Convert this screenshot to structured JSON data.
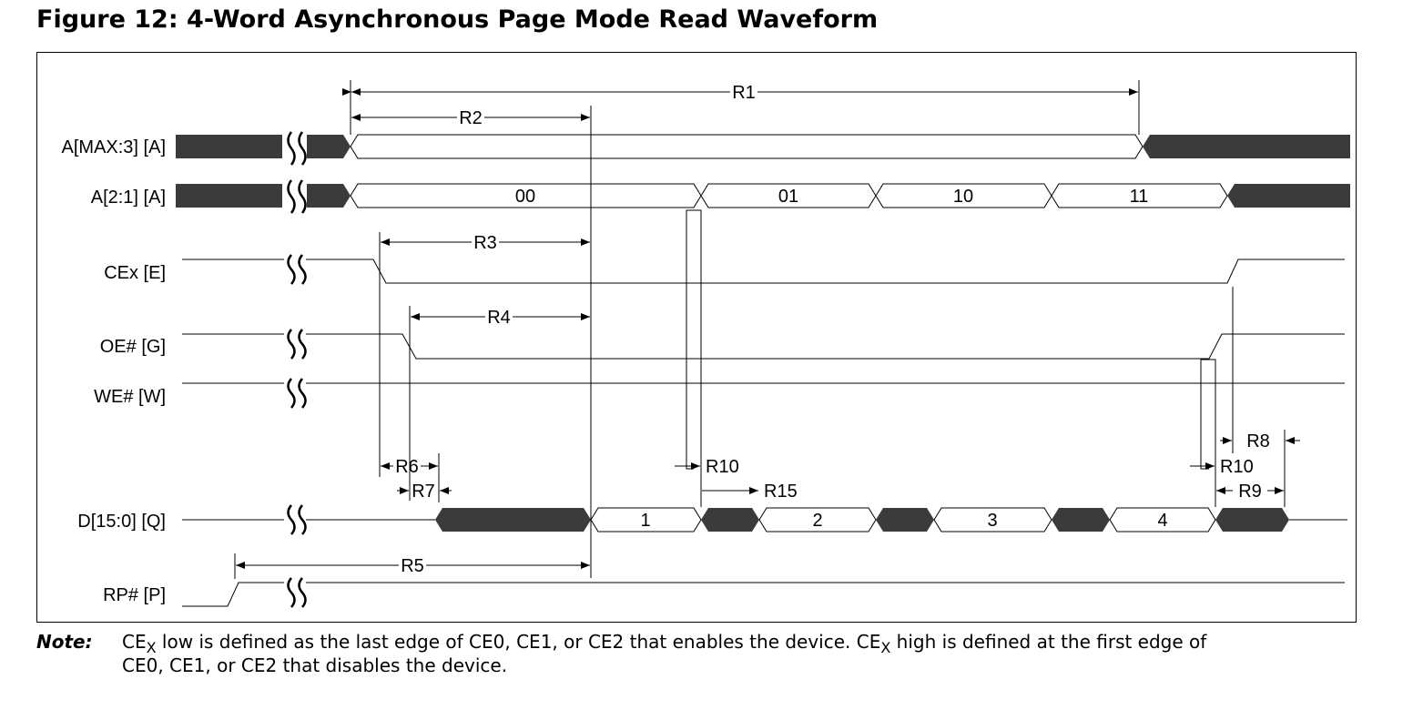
{
  "title": "Figure 12: 4-Word Asynchronous Page Mode Read Waveform",
  "signals": [
    {
      "name": "A[MAX:3] [A]"
    },
    {
      "name": "A[2:1] [A]",
      "values": [
        "00",
        "01",
        "10",
        "11"
      ]
    },
    {
      "name": "CEx [E]"
    },
    {
      "name": "OE# [G]"
    },
    {
      "name": "WE# [W]"
    },
    {
      "name": "D[15:0] [Q]",
      "values": [
        "1",
        "2",
        "3",
        "4"
      ]
    },
    {
      "name": "RP# [P]"
    }
  ],
  "timing_labels": [
    "R1",
    "R2",
    "R3",
    "R4",
    "R5",
    "R6",
    "R7",
    "R8",
    "R9",
    "R10",
    "R10",
    "R15"
  ],
  "note": {
    "label": "Note:",
    "line1_a": "CE",
    "line1_sub1": "X",
    "line1_b": " low is defined as the last edge of CE0, CE1, or CE2 that enables the device. CE",
    "line1_sub2": "X",
    "line1_c": " high is defined at the first edge of",
    "line2": "CE0, CE1, or CE2 that disables the device."
  },
  "colors": {
    "bus_fill": "#3b3b3b",
    "line": "#000000"
  }
}
